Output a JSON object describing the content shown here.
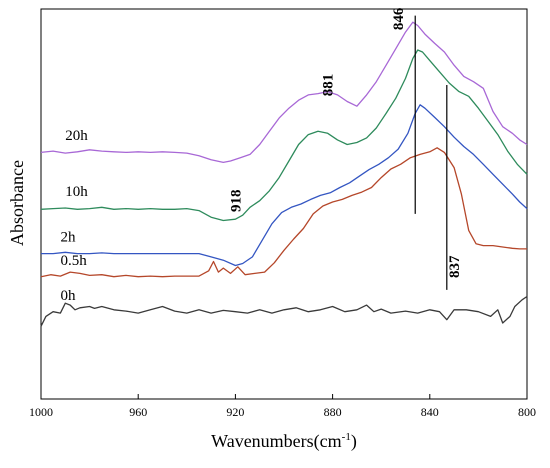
{
  "chart_data": {
    "type": "line",
    "xlabel": "Wavenumbers(cm",
    "xlabel_sup": "-1",
    "xlabel_close": ")",
    "ylabel": "Absorbance",
    "xlim": [
      1000,
      800
    ],
    "ylim": [
      -1.3,
      4.6
    ],
    "reversed_x": true,
    "grid": false,
    "yticks_shown": false,
    "x_ticks": [
      1000,
      960,
      920,
      880,
      840,
      800
    ],
    "series": [
      {
        "name": "0h",
        "color": "#3a3a3a",
        "points": [
          [
            1000,
            -0.2
          ],
          [
            998,
            -0.05
          ],
          [
            995,
            0.02
          ],
          [
            992,
            0.0
          ],
          [
            990,
            0.15
          ],
          [
            988,
            0.12
          ],
          [
            986,
            0.05
          ],
          [
            984,
            0.08
          ],
          [
            980,
            0.1
          ],
          [
            978,
            0.07
          ],
          [
            975,
            0.1
          ],
          [
            970,
            0.05
          ],
          [
            965,
            0.03
          ],
          [
            960,
            0.0
          ],
          [
            955,
            0.05
          ],
          [
            950,
            0.1
          ],
          [
            945,
            0.03
          ],
          [
            940,
            0.0
          ],
          [
            935,
            0.05
          ],
          [
            930,
            0.0
          ],
          [
            925,
            0.04
          ],
          [
            920,
            0.02
          ],
          [
            915,
            0.0
          ],
          [
            910,
            0.05
          ],
          [
            905,
            0.0
          ],
          [
            900,
            0.05
          ],
          [
            895,
            0.08
          ],
          [
            890,
            0.02
          ],
          [
            885,
            0.05
          ],
          [
            880,
            0.1
          ],
          [
            875,
            0.02
          ],
          [
            870,
            0.05
          ],
          [
            866,
            0.12
          ],
          [
            863,
            0.02
          ],
          [
            860,
            0.06
          ],
          [
            856,
            0.0
          ],
          [
            850,
            0.03
          ],
          [
            845,
            0.0
          ],
          [
            840,
            0.05
          ],
          [
            836,
            0.02
          ],
          [
            833,
            -0.1
          ],
          [
            830,
            0.05
          ],
          [
            825,
            0.05
          ],
          [
            820,
            0.02
          ],
          [
            815,
            -0.05
          ],
          [
            812,
            0.05
          ],
          [
            810,
            -0.15
          ],
          [
            807,
            -0.05
          ],
          [
            805,
            0.1
          ],
          [
            802,
            0.2
          ],
          [
            800,
            0.25
          ]
        ]
      },
      {
        "name": "0.5h",
        "color": "#b5472a",
        "points": [
          [
            1000,
            0.55
          ],
          [
            996,
            0.58
          ],
          [
            992,
            0.56
          ],
          [
            988,
            0.62
          ],
          [
            984,
            0.6
          ],
          [
            980,
            0.57
          ],
          [
            975,
            0.58
          ],
          [
            970,
            0.55
          ],
          [
            965,
            0.57
          ],
          [
            960,
            0.55
          ],
          [
            955,
            0.56
          ],
          [
            950,
            0.55
          ],
          [
            945,
            0.56
          ],
          [
            940,
            0.56
          ],
          [
            935,
            0.56
          ],
          [
            931,
            0.64
          ],
          [
            929,
            0.78
          ],
          [
            927,
            0.62
          ],
          [
            925,
            0.68
          ],
          [
            922,
            0.6
          ],
          [
            919,
            0.7
          ],
          [
            916,
            0.58
          ],
          [
            912,
            0.6
          ],
          [
            908,
            0.62
          ],
          [
            904,
            0.76
          ],
          [
            900,
            0.95
          ],
          [
            896,
            1.12
          ],
          [
            892,
            1.28
          ],
          [
            888,
            1.5
          ],
          [
            884,
            1.62
          ],
          [
            880,
            1.68
          ],
          [
            876,
            1.72
          ],
          [
            872,
            1.78
          ],
          [
            868,
            1.83
          ],
          [
            864,
            1.9
          ],
          [
            860,
            2.05
          ],
          [
            856,
            2.18
          ],
          [
            852,
            2.25
          ],
          [
            848,
            2.35
          ],
          [
            844,
            2.4
          ],
          [
            840,
            2.44
          ],
          [
            837,
            2.5
          ],
          [
            834,
            2.43
          ],
          [
            830,
            2.2
          ],
          [
            827,
            1.8
          ],
          [
            824,
            1.25
          ],
          [
            821,
            1.05
          ],
          [
            818,
            1.02
          ],
          [
            814,
            1.02
          ],
          [
            810,
            1.0
          ],
          [
            806,
            0.98
          ],
          [
            803,
            0.97
          ],
          [
            800,
            0.97
          ]
        ]
      },
      {
        "name": "2h",
        "color": "#3456c2",
        "points": [
          [
            1000,
            0.9
          ],
          [
            995,
            0.9
          ],
          [
            990,
            0.92
          ],
          [
            985,
            0.9
          ],
          [
            980,
            0.9
          ],
          [
            975,
            0.91
          ],
          [
            970,
            0.9
          ],
          [
            965,
            0.9
          ],
          [
            960,
            0.9
          ],
          [
            955,
            0.9
          ],
          [
            950,
            0.9
          ],
          [
            945,
            0.9
          ],
          [
            940,
            0.9
          ],
          [
            935,
            0.9
          ],
          [
            930,
            0.85
          ],
          [
            925,
            0.8
          ],
          [
            920,
            0.72
          ],
          [
            917,
            0.75
          ],
          [
            913,
            0.85
          ],
          [
            909,
            1.1
          ],
          [
            905,
            1.35
          ],
          [
            901,
            1.52
          ],
          [
            897,
            1.6
          ],
          [
            893,
            1.65
          ],
          [
            889,
            1.72
          ],
          [
            885,
            1.78
          ],
          [
            881,
            1.82
          ],
          [
            877,
            1.9
          ],
          [
            873,
            1.97
          ],
          [
            869,
            2.07
          ],
          [
            865,
            2.17
          ],
          [
            861,
            2.25
          ],
          [
            857,
            2.35
          ],
          [
            853,
            2.48
          ],
          [
            849,
            2.72
          ],
          [
            846,
            3.02
          ],
          [
            844,
            3.15
          ],
          [
            842,
            3.1
          ],
          [
            838,
            2.96
          ],
          [
            834,
            2.82
          ],
          [
            830,
            2.66
          ],
          [
            826,
            2.52
          ],
          [
            822,
            2.4
          ],
          [
            818,
            2.25
          ],
          [
            814,
            2.1
          ],
          [
            810,
            1.95
          ],
          [
            806,
            1.8
          ],
          [
            803,
            1.68
          ],
          [
            800,
            1.58
          ]
        ]
      },
      {
        "name": "10h",
        "color": "#2e8b5c",
        "points": [
          [
            1000,
            1.57
          ],
          [
            995,
            1.58
          ],
          [
            990,
            1.59
          ],
          [
            985,
            1.57
          ],
          [
            980,
            1.58
          ],
          [
            975,
            1.6
          ],
          [
            970,
            1.57
          ],
          [
            965,
            1.58
          ],
          [
            960,
            1.57
          ],
          [
            955,
            1.58
          ],
          [
            950,
            1.57
          ],
          [
            945,
            1.57
          ],
          [
            940,
            1.58
          ],
          [
            935,
            1.55
          ],
          [
            930,
            1.45
          ],
          [
            925,
            1.4
          ],
          [
            920,
            1.42
          ],
          [
            917,
            1.48
          ],
          [
            914,
            1.6
          ],
          [
            910,
            1.7
          ],
          [
            906,
            1.85
          ],
          [
            902,
            2.05
          ],
          [
            898,
            2.3
          ],
          [
            894,
            2.55
          ],
          [
            890,
            2.7
          ],
          [
            886,
            2.75
          ],
          [
            882,
            2.72
          ],
          [
            878,
            2.62
          ],
          [
            874,
            2.55
          ],
          [
            870,
            2.58
          ],
          [
            866,
            2.65
          ],
          [
            862,
            2.8
          ],
          [
            858,
            3.02
          ],
          [
            854,
            3.25
          ],
          [
            850,
            3.55
          ],
          [
            847,
            3.85
          ],
          [
            845,
            3.98
          ],
          [
            843,
            3.95
          ],
          [
            840,
            3.82
          ],
          [
            836,
            3.65
          ],
          [
            832,
            3.48
          ],
          [
            828,
            3.35
          ],
          [
            824,
            3.28
          ],
          [
            820,
            3.1
          ],
          [
            816,
            2.9
          ],
          [
            812,
            2.7
          ],
          [
            808,
            2.45
          ],
          [
            804,
            2.25
          ],
          [
            800,
            2.1
          ]
        ]
      },
      {
        "name": "20h",
        "color": "#a868d6",
        "points": [
          [
            1000,
            2.43
          ],
          [
            995,
            2.45
          ],
          [
            990,
            2.42
          ],
          [
            985,
            2.44
          ],
          [
            980,
            2.47
          ],
          [
            975,
            2.45
          ],
          [
            970,
            2.44
          ],
          [
            965,
            2.43
          ],
          [
            960,
            2.44
          ],
          [
            955,
            2.43
          ],
          [
            950,
            2.44
          ],
          [
            945,
            2.43
          ],
          [
            940,
            2.42
          ],
          [
            935,
            2.38
          ],
          [
            930,
            2.32
          ],
          [
            925,
            2.28
          ],
          [
            922,
            2.3
          ],
          [
            918,
            2.35
          ],
          [
            914,
            2.4
          ],
          [
            910,
            2.55
          ],
          [
            906,
            2.75
          ],
          [
            902,
            2.95
          ],
          [
            898,
            3.1
          ],
          [
            894,
            3.22
          ],
          [
            890,
            3.3
          ],
          [
            886,
            3.32
          ],
          [
            882,
            3.35
          ],
          [
            878,
            3.3
          ],
          [
            874,
            3.2
          ],
          [
            870,
            3.13
          ],
          [
            866,
            3.3
          ],
          [
            862,
            3.5
          ],
          [
            858,
            3.75
          ],
          [
            854,
            4.0
          ],
          [
            850,
            4.25
          ],
          [
            847,
            4.4
          ],
          [
            845,
            4.35
          ],
          [
            842,
            4.22
          ],
          [
            838,
            4.08
          ],
          [
            834,
            3.95
          ],
          [
            830,
            3.75
          ],
          [
            826,
            3.58
          ],
          [
            822,
            3.5
          ],
          [
            818,
            3.4
          ],
          [
            814,
            3.05
          ],
          [
            810,
            2.82
          ],
          [
            806,
            2.72
          ],
          [
            803,
            2.62
          ],
          [
            800,
            2.55
          ]
        ]
      }
    ],
    "series_labels": [
      {
        "text": "20h",
        "x": 990,
        "y": 2.62
      },
      {
        "text": "10h",
        "x": 990,
        "y": 1.77
      },
      {
        "text": "2h",
        "x": 992,
        "y": 1.08
      },
      {
        "text": "0.5h",
        "x": 992,
        "y": 0.73
      },
      {
        "text": "0h",
        "x": 992,
        "y": 0.2
      }
    ],
    "peak_markers": [
      {
        "label": "846",
        "x": 846,
        "y1": 1.5,
        "y2": 4.5,
        "label_y": 4.45,
        "label_x": 851
      },
      {
        "label": "837",
        "x": 833,
        "y1": 0.35,
        "y2": 3.45,
        "label_y": 0.7,
        "label_x": 828
      }
    ],
    "annotations": [
      {
        "text": "881",
        "x": 880,
        "y": 3.45
      },
      {
        "text": "918",
        "x": 918,
        "y": 1.7
      }
    ]
  }
}
